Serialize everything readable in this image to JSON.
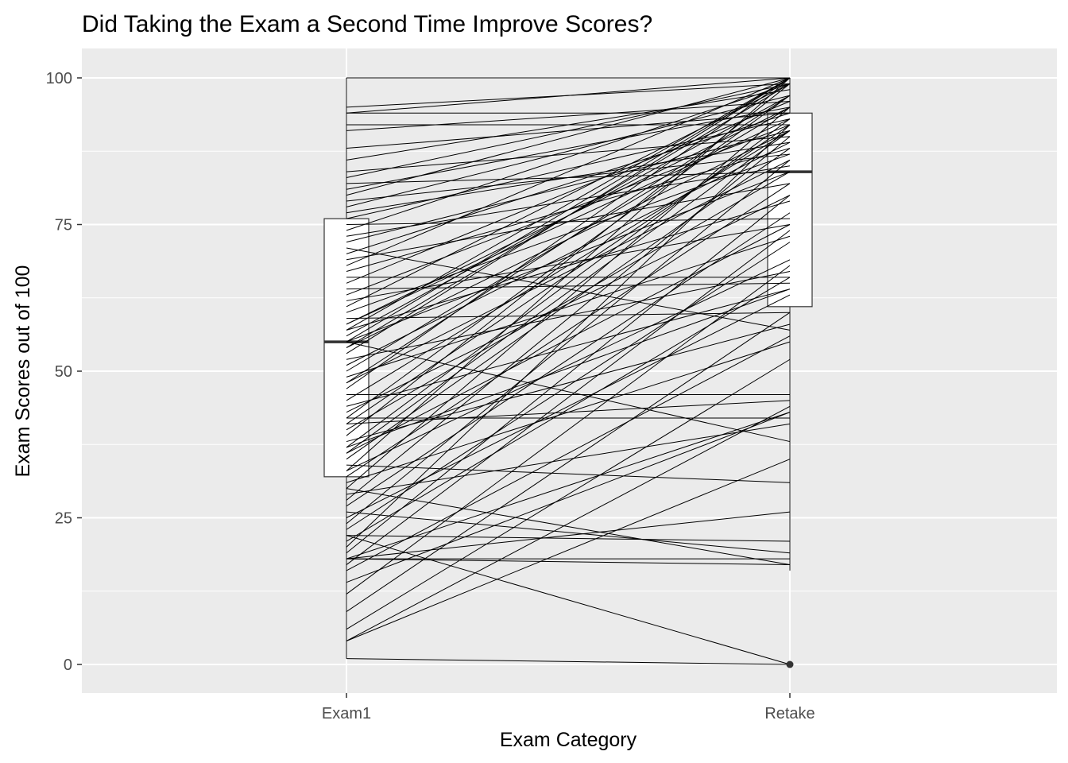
{
  "chart_data": {
    "type": "line",
    "subtype": "paired-boxplot",
    "title": "Did Taking the Exam a Second Time Improve Scores?",
    "xlabel": "Exam Category",
    "ylabel": "Exam Scores out of 100",
    "categories": [
      "Exam1",
      "Retake"
    ],
    "ylim": [
      -5,
      105
    ],
    "yticks": [
      0,
      25,
      50,
      75,
      100
    ],
    "ytick_labels": [
      "0",
      "25",
      "50",
      "75",
      "100"
    ],
    "grid": true,
    "legend": "none",
    "colors": {
      "panel": "#ebebeb",
      "grid": "#ffffff",
      "line": "#000000",
      "box_fill": "#ffffff",
      "box_stroke": "#333333"
    },
    "boxplots": [
      {
        "category": "Exam1",
        "min": 1,
        "q1": 32,
        "median": 55,
        "q3": 76,
        "max": 100,
        "outliers": []
      },
      {
        "category": "Retake",
        "min": 16,
        "q1": 61,
        "median": 84,
        "q3": 94,
        "max": 100,
        "outliers": [
          0
        ]
      }
    ],
    "pairs": [
      [
        1,
        0
      ],
      [
        4,
        44
      ],
      [
        4,
        35
      ],
      [
        6,
        52
      ],
      [
        9,
        60
      ],
      [
        12,
        68
      ],
      [
        14,
        43
      ],
      [
        16,
        56
      ],
      [
        17,
        74
      ],
      [
        18,
        18
      ],
      [
        18,
        26
      ],
      [
        18,
        43
      ],
      [
        18,
        17
      ],
      [
        19,
        80
      ],
      [
        20,
        92
      ],
      [
        21,
        66
      ],
      [
        22,
        21
      ],
      [
        22,
        0
      ],
      [
        23,
        72
      ],
      [
        24,
        86
      ],
      [
        25,
        63
      ],
      [
        26,
        19
      ],
      [
        27,
        77
      ],
      [
        28,
        90
      ],
      [
        29,
        41
      ],
      [
        30,
        17
      ],
      [
        30,
        95
      ],
      [
        31,
        55
      ],
      [
        32,
        82
      ],
      [
        33,
        100
      ],
      [
        33,
        69
      ],
      [
        34,
        31
      ],
      [
        35,
        88
      ],
      [
        36,
        75
      ],
      [
        37,
        93
      ],
      [
        38,
        58
      ],
      [
        39,
        99
      ],
      [
        40,
        84
      ],
      [
        41,
        45
      ],
      [
        42,
        97
      ],
      [
        42,
        42
      ],
      [
        43,
        80
      ],
      [
        44,
        64
      ],
      [
        45,
        91
      ],
      [
        46,
        46
      ],
      [
        47,
        100
      ],
      [
        48,
        86
      ],
      [
        49,
        73
      ],
      [
        50,
        95
      ],
      [
        51,
        89
      ],
      [
        52,
        67
      ],
      [
        53,
        100
      ],
      [
        54,
        91
      ],
      [
        55,
        84
      ],
      [
        55,
        38
      ],
      [
        56,
        97
      ],
      [
        57,
        79
      ],
      [
        58,
        93
      ],
      [
        59,
        60
      ],
      [
        60,
        87
      ],
      [
        61,
        99
      ],
      [
        62,
        75
      ],
      [
        63,
        92
      ],
      [
        64,
        65
      ],
      [
        65,
        96
      ],
      [
        66,
        66
      ],
      [
        67,
        88
      ],
      [
        68,
        100
      ],
      [
        69,
        82
      ],
      [
        70,
        94
      ],
      [
        71,
        57
      ],
      [
        72,
        91
      ],
      [
        73,
        85
      ],
      [
        74,
        99
      ],
      [
        75,
        76
      ],
      [
        76,
        93
      ],
      [
        77,
        89
      ],
      [
        78,
        97
      ],
      [
        79,
        87
      ],
      [
        80,
        100
      ],
      [
        81,
        95
      ],
      [
        82,
        84
      ],
      [
        83,
        99
      ],
      [
        84,
        90
      ],
      [
        86,
        98
      ],
      [
        88,
        94
      ],
      [
        91,
        96
      ],
      [
        92,
        92
      ],
      [
        94,
        94
      ],
      [
        94,
        100
      ],
      [
        95,
        99
      ],
      [
        100,
        100
      ],
      [
        57,
        100
      ],
      [
        55,
        100
      ],
      [
        54,
        99
      ],
      [
        36,
        91
      ],
      [
        41,
        92
      ],
      [
        48,
        97
      ],
      [
        37,
        64
      ],
      [
        58,
        95
      ]
    ]
  }
}
